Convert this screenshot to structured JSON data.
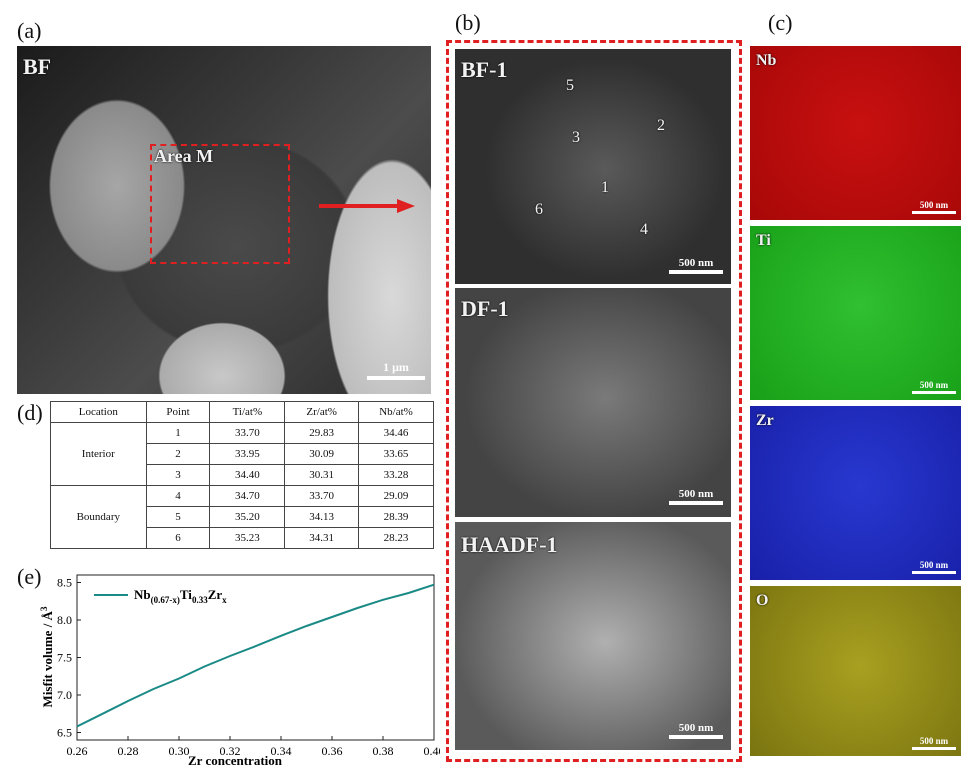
{
  "panels": {
    "a": {
      "label": "(a)",
      "tag": "BF",
      "area_label": "Area M",
      "scale_bar": "1 μm"
    },
    "b": {
      "label": "(b)",
      "images": [
        {
          "tag": "BF-1",
          "scale_bar": "500 nm"
        },
        {
          "tag": "DF-1",
          "scale_bar": "500 nm"
        },
        {
          "tag": "HAADF-1",
          "scale_bar": "500 nm"
        }
      ],
      "points": [
        "1",
        "2",
        "3",
        "4",
        "5",
        "6"
      ]
    },
    "c": {
      "label": "(c)",
      "maps": [
        {
          "tag": "Nb",
          "scale_bar": "500 nm"
        },
        {
          "tag": "Ti",
          "scale_bar": "500 nm"
        },
        {
          "tag": "Zr",
          "scale_bar": "500 nm"
        },
        {
          "tag": "O",
          "scale_bar": "500 nm"
        }
      ]
    },
    "d": {
      "label": "(d)",
      "columns": [
        "Location",
        "Point",
        "Ti/at%",
        "Zr/at%",
        "Nb/at%"
      ],
      "groups": [
        {
          "location": "Interior",
          "rows": [
            [
              "1",
              "33.70",
              "29.83",
              "34.46"
            ],
            [
              "2",
              "33.95",
              "30.09",
              "33.65"
            ],
            [
              "3",
              "34.40",
              "30.31",
              "33.28"
            ]
          ]
        },
        {
          "location": "Boundary",
          "rows": [
            [
              "4",
              "34.70",
              "33.70",
              "29.09"
            ],
            [
              "5",
              "35.20",
              "34.13",
              "28.39"
            ],
            [
              "6",
              "35.23",
              "34.31",
              "28.23"
            ]
          ]
        }
      ]
    },
    "e": {
      "label": "(e)"
    }
  },
  "chart_data": {
    "type": "line",
    "xlabel": "Zr concentration",
    "ylabel": "Misfit volume / Å",
    "ylabel_sup": "3",
    "xlim": [
      0.26,
      0.4
    ],
    "ylim": [
      6.4,
      8.6
    ],
    "x_ticks": [
      "0.26",
      "0.28",
      "0.30",
      "0.32",
      "0.34",
      "0.36",
      "0.38",
      "0.40"
    ],
    "y_ticks": [
      "6.5",
      "7.0",
      "7.5",
      "8.0",
      "8.5"
    ],
    "legend": "top-left",
    "series": [
      {
        "name_parts": [
          "Nb",
          "(0.67-x)",
          "Ti",
          "0.33",
          "Zr",
          "x"
        ],
        "color": "#1a8a86",
        "x": [
          0.26,
          0.27,
          0.28,
          0.29,
          0.3,
          0.31,
          0.32,
          0.33,
          0.34,
          0.35,
          0.36,
          0.37,
          0.38,
          0.39,
          0.4
        ],
        "y": [
          6.58,
          6.75,
          6.92,
          7.08,
          7.22,
          7.38,
          7.52,
          7.65,
          7.79,
          7.92,
          8.04,
          8.16,
          8.27,
          8.36,
          8.47
        ]
      }
    ]
  }
}
